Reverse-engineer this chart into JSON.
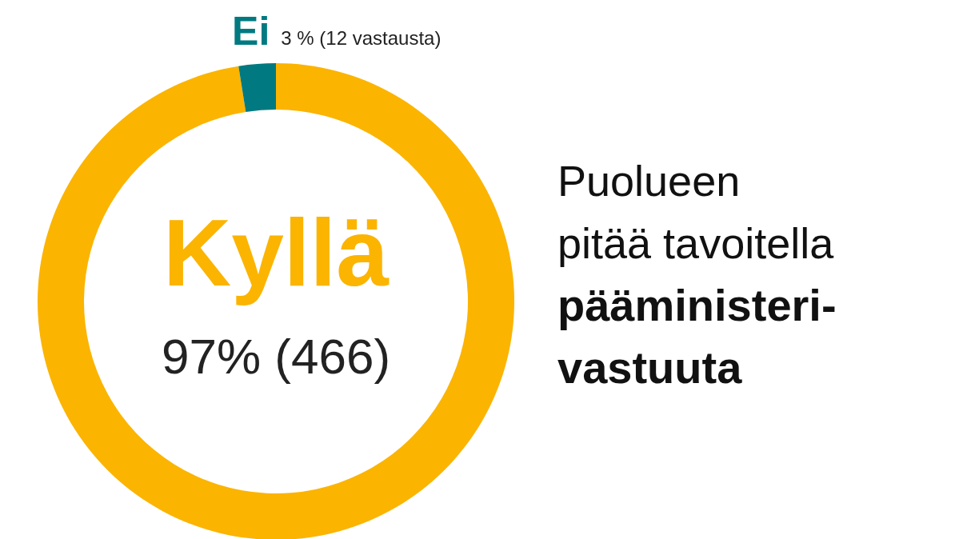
{
  "chart_data": {
    "type": "donut",
    "title": "Puolueen pitää tavoitella",
    "subtitle": "pääministeri-vastuuta",
    "categories": [
      "Kyllä",
      "Ei"
    ],
    "values": [
      466,
      12
    ],
    "colors": [
      "#fbb400",
      "#007a80"
    ],
    "value_labels": [
      "97% (466)",
      "3 % (12 vastausta)"
    ]
  }
}
